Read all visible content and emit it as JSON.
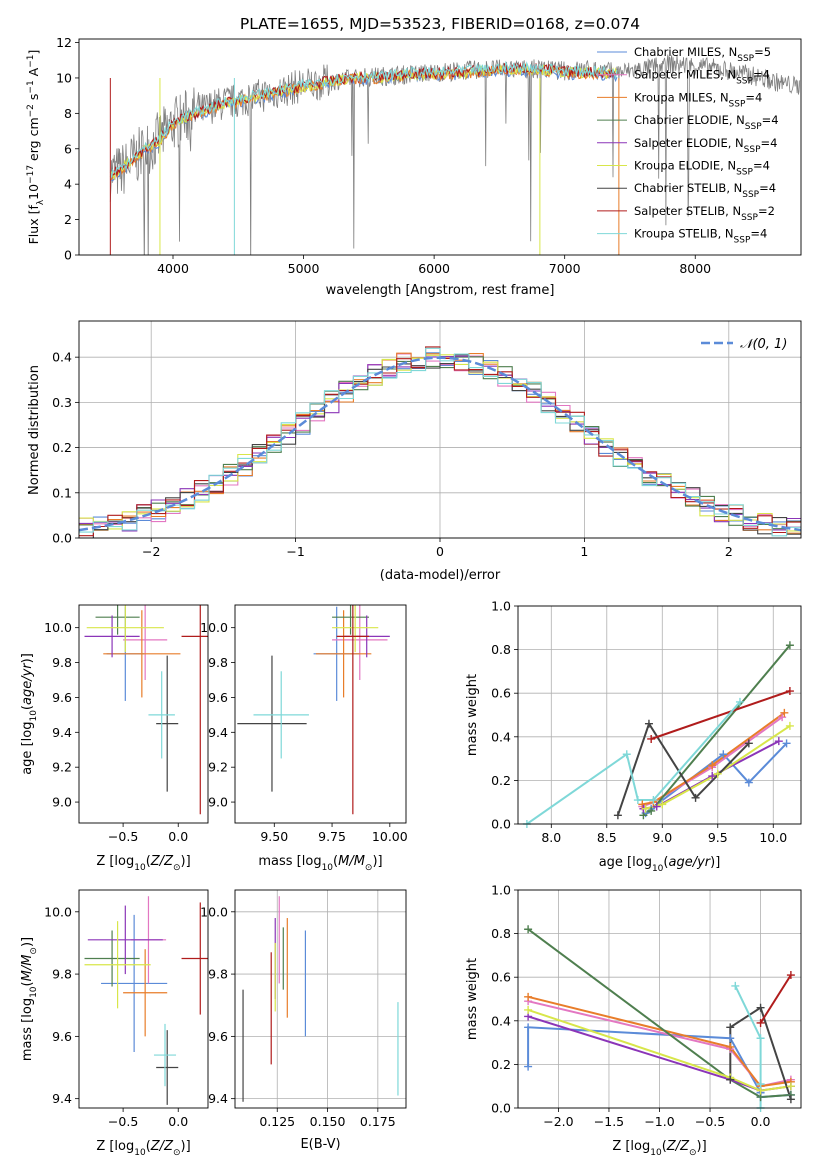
{
  "figure": {
    "title": "PLATE=1655, MJD=53523, FIBERID=0168, z=0.074"
  },
  "colors": {
    "Chabrier MILES": "#5b8bd8",
    "Salpeter MILES": "#e377c2",
    "Kroupa MILES": "#e87d2a",
    "Chabrier ELODIE": "#4f7f4f",
    "Salpeter ELODIE": "#8b35b8",
    "Kroupa ELODIE": "#d8e64a",
    "Chabrier STELIB": "#444444",
    "Salpeter STELIB": "#b01c1c",
    "Kroupa STELIB": "#7fd8d8",
    "data": "#808080",
    "gauss": "#5b8bd8"
  },
  "chart_data": [
    {
      "id": "spectrum",
      "type": "line",
      "xlabel": "wavelength [Angstrom, rest frame]",
      "ylabel": "Flux [f",
      "ylabel_parts": [
        "Flux [f",
        "λ",
        "10",
        "−17",
        " erg cm",
        "−2",
        " s",
        "−1",
        " A",
        "−1",
        "]"
      ],
      "xlim": [
        3280,
        8810
      ],
      "ylim": [
        0,
        12.2
      ],
      "xticks": [
        4000,
        5000,
        6000,
        7000,
        8000
      ],
      "yticks": [
        0,
        2,
        4,
        6,
        8,
        10,
        12
      ],
      "grid": false,
      "legend_position": "right",
      "legend": [
        {
          "name": "Chabrier MILES",
          "nssp": "5"
        },
        {
          "name": "Salpeter MILES",
          "nssp": "4"
        },
        {
          "name": "Kroupa MILES",
          "nssp": "4"
        },
        {
          "name": "Chabrier ELODIE",
          "nssp": "4"
        },
        {
          "name": "Salpeter ELODIE",
          "nssp": "4"
        },
        {
          "name": "Kroupa ELODIE",
          "nssp": "4"
        },
        {
          "name": "Chabrier STELIB",
          "nssp": "4"
        },
        {
          "name": "Salpeter STELIB",
          "nssp": "2"
        },
        {
          "name": "Kroupa STELIB",
          "nssp": "4"
        }
      ],
      "data_envelope": {
        "x": [
          3520,
          3600,
          3700,
          3800,
          3900,
          4000,
          4100,
          4200,
          4300,
          4400,
          4500,
          4600,
          4800,
          5000,
          5200,
          5400,
          5600,
          5800,
          6000,
          6200,
          6400,
          6600,
          6800,
          7000,
          7200,
          7400,
          7600,
          7800,
          8000,
          8200,
          8400,
          8600,
          8800
        ],
        "y": [
          4.6,
          4.7,
          5.4,
          6.0,
          6.6,
          7.4,
          7.8,
          8.1,
          8.4,
          8.6,
          8.7,
          8.9,
          9.2,
          9.6,
          9.8,
          10.0,
          10.1,
          10.2,
          10.3,
          10.4,
          10.5,
          10.5,
          10.5,
          10.4,
          10.5,
          10.3,
          10.5,
          10.8,
          10.7,
          10.5,
          10.2,
          9.8,
          9.5
        ]
      },
      "model_curve": {
        "x": [
          3520,
          3600,
          3700,
          3800,
          3900,
          4000,
          4100,
          4200,
          4300,
          4400,
          4500,
          4600,
          4800,
          5000,
          5200,
          5400,
          5600,
          5800,
          6000,
          6200,
          6400,
          6600,
          6800,
          7000,
          7200,
          7400
        ],
        "y": [
          4.5,
          4.8,
          5.5,
          6.0,
          6.5,
          7.4,
          7.8,
          8.0,
          8.3,
          8.6,
          8.7,
          8.9,
          9.2,
          9.5,
          9.8,
          10.0,
          10.0,
          10.2,
          10.2,
          10.3,
          10.4,
          10.5,
          10.5,
          10.3,
          10.3,
          10.2
        ]
      }
    },
    {
      "id": "residuals",
      "type": "histogram",
      "xlabel": "(data-model)/error",
      "ylabel": "Normed distribution",
      "xlim": [
        -2.5,
        2.5
      ],
      "ylim": [
        0,
        0.48
      ],
      "xticks": [
        -2,
        -1,
        0,
        1,
        2
      ],
      "xtick_labels": [
        "−2",
        "−1",
        "0",
        "1",
        "2"
      ],
      "yticks": [
        0,
        0.1,
        0.2,
        0.3,
        0.4
      ],
      "ytick_labels": [
        "0.0",
        "0.1",
        "0.2",
        "0.3",
        "0.4"
      ],
      "grid": true,
      "legend_position": "top-right",
      "legend": [
        "𝒩(0, 1)"
      ],
      "bin_width": 0.1
    },
    {
      "id": "age-vs-Z",
      "type": "errorbar",
      "xlabel": "Z [log",
      "xlabel_full": "Z [log10(Z/Z⊙)]",
      "ylabel_full": "age  [log10(age/yr)]",
      "xlim": [
        -0.9,
        0.27
      ],
      "ylim": [
        8.88,
        10.13
      ],
      "xticks": [
        -0.5,
        0.0
      ],
      "xtick_labels": [
        "−0.5",
        "0.0"
      ],
      "yticks": [
        9.0,
        9.2,
        9.4,
        9.6,
        9.8,
        10.0
      ],
      "ytick_labels": [
        "9.0",
        "9.2",
        "9.4",
        "9.6",
        "9.8",
        "10.0"
      ],
      "points": [
        {
          "model": "Chabrier MILES",
          "x": -0.48,
          "xerr": 0.17,
          "y": 9.85,
          "yerr": 0.27
        },
        {
          "model": "Salpeter MILES",
          "x": -0.3,
          "xerr": 0.2,
          "y": 9.93,
          "yerr": 0.23
        },
        {
          "model": "Kroupa MILES",
          "x": -0.33,
          "xerr": 0.35,
          "y": 9.85,
          "yerr": 0.25
        },
        {
          "model": "Chabrier ELODIE",
          "x": -0.55,
          "xerr": 0.2,
          "y": 10.06,
          "yerr": 0.1
        },
        {
          "model": "Salpeter ELODIE",
          "x": -0.6,
          "xerr": 0.25,
          "y": 9.95,
          "yerr": 0.12
        },
        {
          "model": "Kroupa ELODIE",
          "x": -0.48,
          "xerr": 0.35,
          "y": 10.0,
          "yerr": 0.14
        },
        {
          "model": "Chabrier STELIB",
          "x": -0.1,
          "xerr": 0.1,
          "y": 9.45,
          "yerr": 0.39
        },
        {
          "model": "Salpeter STELIB",
          "x": 0.2,
          "xerr": 0.17,
          "y": 9.95,
          "yerr": 1.02
        },
        {
          "model": "Kroupa STELIB",
          "x": -0.15,
          "xerr": 0.12,
          "y": 9.5,
          "yerr": 0.25
        }
      ]
    },
    {
      "id": "age-vs-mass",
      "type": "errorbar",
      "xlabel_full": "mass [log10(M/M⊙)]",
      "xlim": [
        9.33,
        10.07
      ],
      "ylim": [
        8.88,
        10.13
      ],
      "xticks": [
        9.5,
        9.75,
        10.0
      ],
      "xtick_labels": [
        "9.50",
        "9.75",
        "10.00"
      ],
      "yticks": [
        9.0,
        9.2,
        9.4,
        9.6,
        9.8,
        10.0
      ],
      "ytick_labels": [
        "9.0",
        "9.2",
        "9.4",
        "9.6",
        "9.8",
        "10.0"
      ],
      "points": [
        {
          "model": "Chabrier MILES",
          "x": 9.77,
          "xerr": 0.1,
          "y": 9.85,
          "yerr": 0.27
        },
        {
          "model": "Salpeter MILES",
          "x": 9.87,
          "xerr": 0.12,
          "y": 9.93,
          "yerr": 0.23
        },
        {
          "model": "Kroupa MILES",
          "x": 9.8,
          "xerr": 0.12,
          "y": 9.85,
          "yerr": 0.25
        },
        {
          "model": "Chabrier ELODIE",
          "x": 9.83,
          "xerr": 0.08,
          "y": 10.06,
          "yerr": 0.1
        },
        {
          "model": "Salpeter ELODIE",
          "x": 9.9,
          "xerr": 0.1,
          "y": 9.95,
          "yerr": 0.12
        },
        {
          "model": "Kroupa ELODIE",
          "x": 9.85,
          "xerr": 0.1,
          "y": 10.0,
          "yerr": 0.14
        },
        {
          "model": "Chabrier STELIB",
          "x": 9.49,
          "xerr": 0.15,
          "y": 9.45,
          "yerr": 0.39
        },
        {
          "model": "Salpeter STELIB",
          "x": 9.84,
          "xerr": 0.07,
          "y": 9.95,
          "yerr": 1.02
        },
        {
          "model": "Kroupa STELIB",
          "x": 9.53,
          "xerr": 0.12,
          "y": 9.5,
          "yerr": 0.25
        }
      ]
    },
    {
      "id": "weight-vs-age",
      "type": "line",
      "xlabel_full": "age  [log10(age/yr)]",
      "ylabel": "mass weight",
      "xlim": [
        7.7,
        10.25
      ],
      "ylim": [
        0,
        1.0
      ],
      "xticks": [
        8.0,
        8.5,
        9.0,
        9.5,
        10.0
      ],
      "xtick_labels": [
        "8.0",
        "8.5",
        "9.0",
        "9.5",
        "10.0"
      ],
      "yticks": [
        0,
        0.2,
        0.4,
        0.6,
        0.8,
        1.0
      ],
      "ytick_labels": [
        "0.0",
        "0.2",
        "0.4",
        "0.6",
        "0.8",
        "1.0"
      ],
      "grid": true,
      "series": [
        {
          "model": "Chabrier MILES",
          "x": [
            8.85,
            8.9,
            9.55,
            9.78,
            10.12
          ],
          "y": [
            0.05,
            0.07,
            0.32,
            0.19,
            0.37
          ]
        },
        {
          "model": "Salpeter MILES",
          "x": [
            8.82,
            8.92,
            9.45,
            10.08
          ],
          "y": [
            0.08,
            0.1,
            0.26,
            0.49
          ]
        },
        {
          "model": "Kroupa MILES",
          "x": [
            8.82,
            8.92,
            9.45,
            10.1
          ],
          "y": [
            0.09,
            0.1,
            0.27,
            0.51
          ]
        },
        {
          "model": "Chabrier ELODIE",
          "x": [
            8.83,
            8.9,
            10.15
          ],
          "y": [
            0.04,
            0.06,
            0.82
          ]
        },
        {
          "model": "Salpeter ELODIE",
          "x": [
            8.83,
            8.95,
            9.45,
            10.05
          ],
          "y": [
            0.07,
            0.08,
            0.22,
            0.38
          ]
        },
        {
          "model": "Kroupa ELODIE",
          "x": [
            8.85,
            9.0,
            9.5,
            10.15
          ],
          "y": [
            0.07,
            0.09,
            0.23,
            0.45
          ]
        },
        {
          "model": "Chabrier STELIB",
          "x": [
            8.6,
            8.88,
            9.3,
            9.78
          ],
          "y": [
            0.04,
            0.46,
            0.12,
            0.37
          ]
        },
        {
          "model": "Salpeter STELIB",
          "x": [
            8.9,
            10.15
          ],
          "y": [
            0.39,
            0.61
          ]
        },
        {
          "model": "Kroupa STELIB",
          "x": [
            7.78,
            8.68,
            8.78,
            8.92,
            9.7
          ],
          "y": [
            0.0,
            0.32,
            0.11,
            0.11,
            0.56
          ]
        }
      ]
    },
    {
      "id": "mass-vs-Z",
      "type": "errorbar",
      "xlabel_full": "Z [log10(Z/Z⊙)]",
      "ylabel_full": "mass [log10(M/M⊙)]",
      "xlim": [
        -0.9,
        0.27
      ],
      "ylim": [
        9.37,
        10.07
      ],
      "xticks": [
        -0.5,
        0.0
      ],
      "xtick_labels": [
        "−0.5",
        "0.0"
      ],
      "yticks": [
        9.4,
        9.6,
        9.8,
        10.0
      ],
      "ytick_labels": [
        "9.4",
        "9.6",
        "9.8",
        "10.0"
      ],
      "points": [
        {
          "model": "Chabrier MILES",
          "x": -0.4,
          "xerr": 0.3,
          "y": 9.77,
          "yerr": 0.22
        },
        {
          "model": "Salpeter MILES",
          "x": -0.27,
          "xerr": 0.16,
          "y": 9.91,
          "yerr": 0.14
        },
        {
          "model": "Kroupa MILES",
          "x": -0.3,
          "xerr": 0.2,
          "y": 9.74,
          "yerr": 0.14
        },
        {
          "model": "Chabrier ELODIE",
          "x": -0.6,
          "xerr": 0.25,
          "y": 9.85,
          "yerr": 0.09
        },
        {
          "model": "Salpeter ELODIE",
          "x": -0.48,
          "xerr": 0.34,
          "y": 9.91,
          "yerr": 0.11
        },
        {
          "model": "Kroupa ELODIE",
          "x": -0.55,
          "xerr": 0.3,
          "y": 9.83,
          "yerr": 0.14
        },
        {
          "model": "Chabrier STELIB",
          "x": -0.1,
          "xerr": 0.1,
          "y": 9.5,
          "yerr": 0.12
        },
        {
          "model": "Salpeter STELIB",
          "x": 0.2,
          "xerr": 0.17,
          "y": 9.85,
          "yerr": 0.18
        },
        {
          "model": "Kroupa STELIB",
          "x": -0.12,
          "xerr": 0.1,
          "y": 9.54,
          "yerr": 0.1
        }
      ]
    },
    {
      "id": "mass-vs-ebv",
      "type": "errorbar",
      "xlabel": "E(B-V)",
      "xlim": [
        0.104,
        0.189
      ],
      "ylim": [
        9.37,
        10.07
      ],
      "xticks": [
        0.125,
        0.15,
        0.175
      ],
      "xtick_labels": [
        "0.125",
        "0.150",
        "0.175"
      ],
      "yticks": [
        9.4,
        9.6,
        9.8,
        10.0
      ],
      "ytick_labels": [
        "9.4",
        "9.6",
        "9.8",
        "10.0"
      ],
      "points": [
        {
          "model": "Chabrier MILES",
          "x": 0.139,
          "y": 9.77,
          "yerr": 0.17
        },
        {
          "model": "Salpeter MILES",
          "x": 0.126,
          "y": 9.91,
          "yerr": 0.14
        },
        {
          "model": "Kroupa MILES",
          "x": 0.13,
          "y": 9.82,
          "yerr": 0.16
        },
        {
          "model": "Chabrier ELODIE",
          "x": 0.128,
          "y": 9.85,
          "yerr": 0.1
        },
        {
          "model": "Salpeter ELODIE",
          "x": 0.124,
          "y": 9.85,
          "yerr": 0.13
        },
        {
          "model": "Kroupa ELODIE",
          "x": 0.124,
          "y": 9.79,
          "yerr": 0.11
        },
        {
          "model": "Chabrier STELIB",
          "x": 0.108,
          "y": 9.57,
          "yerr": 0.18
        },
        {
          "model": "Salpeter STELIB",
          "x": 0.122,
          "y": 9.69,
          "yerr": 0.18
        },
        {
          "model": "Kroupa STELIB",
          "x": 0.185,
          "y": 9.56,
          "yerr": 0.15
        }
      ]
    },
    {
      "id": "weight-vs-Z",
      "type": "line",
      "xlabel_full": "Z [log10(Z/Z⊙)]",
      "ylabel": "mass weight",
      "xlim": [
        -2.4,
        0.4
      ],
      "ylim": [
        0,
        1.0
      ],
      "xticks": [
        -2.0,
        -1.5,
        -1.0,
        -0.5,
        0.0
      ],
      "xtick_labels": [
        "−2.0",
        "−1.5",
        "−1.0",
        "−0.5",
        "0.0"
      ],
      "yticks": [
        0,
        0.2,
        0.4,
        0.6,
        0.8,
        1.0
      ],
      "ytick_labels": [
        "0.0",
        "0.2",
        "0.4",
        "0.6",
        "0.8",
        "1.0"
      ],
      "grid": true,
      "series": [
        {
          "model": "Chabrier MILES",
          "x": [
            -2.3,
            -2.3,
            -0.3,
            0.0,
            0.0,
            0.3
          ],
          "y": [
            0.19,
            0.37,
            0.32,
            0.07,
            0.05,
            0.06
          ]
        },
        {
          "model": "Salpeter MILES",
          "x": [
            -2.3,
            -0.3,
            0.0,
            0.3
          ],
          "y": [
            0.49,
            0.27,
            0.1,
            0.13
          ]
        },
        {
          "model": "Kroupa MILES",
          "x": [
            -2.3,
            -0.3,
            0.0,
            0.3
          ],
          "y": [
            0.51,
            0.28,
            0.1,
            0.12
          ]
        },
        {
          "model": "Chabrier ELODIE",
          "x": [
            -2.3,
            -0.3,
            0.0,
            0.3
          ],
          "y": [
            0.82,
            0.13,
            0.05,
            0.06
          ]
        },
        {
          "model": "Salpeter ELODIE",
          "x": [
            -2.3,
            -0.3,
            0.0,
            0.3
          ],
          "y": [
            0.42,
            0.13,
            0.08,
            0.1
          ]
        },
        {
          "model": "Kroupa ELODIE",
          "x": [
            -2.3,
            -0.3,
            0.0,
            0.3
          ],
          "y": [
            0.45,
            0.14,
            0.08,
            0.1
          ]
        },
        {
          "model": "Chabrier STELIB",
          "x": [
            -0.3,
            -0.3,
            0.0,
            0.3
          ],
          "y": [
            0.13,
            0.37,
            0.46,
            0.04
          ]
        },
        {
          "model": "Salpeter STELIB",
          "x": [
            0.0,
            0.3
          ],
          "y": [
            0.39,
            0.61
          ]
        },
        {
          "model": "Kroupa STELIB",
          "x": [
            -0.25,
            0.0,
            0.0,
            0.0,
            0.0
          ],
          "y": [
            0.56,
            0.32,
            0.11,
            0.11,
            0.0
          ]
        }
      ]
    }
  ]
}
